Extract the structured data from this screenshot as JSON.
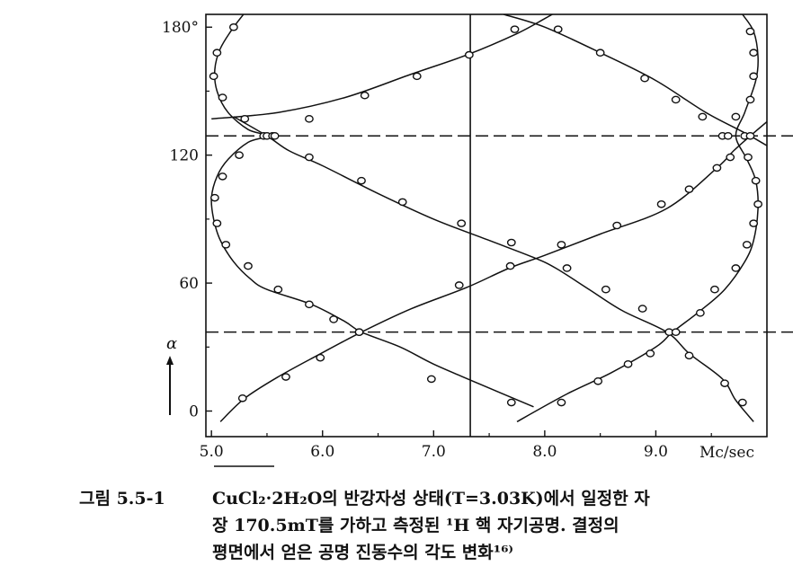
{
  "chart_data": {
    "type": "scatter",
    "title": "",
    "xlabel": "Mc/sec",
    "ylabel": "α",
    "xlim": [
      4.95,
      10.0
    ],
    "ylim": [
      -12,
      186
    ],
    "x_ticks": [
      "5.0",
      "6.0",
      "7.0",
      "8.0",
      "9.0"
    ],
    "x_tick_values": [
      5.0,
      6.0,
      7.0,
      8.0,
      9.0
    ],
    "y_ticks": [
      "0",
      "60",
      "120",
      "180°"
    ],
    "y_tick_values": [
      0,
      60,
      120,
      180
    ],
    "grid": false,
    "reference_lines": {
      "vertical_x": 7.33,
      "horizontal_dashed_y": [
        129,
        37
      ]
    },
    "series": [
      {
        "curve": [
          [
            5.35,
            190
          ],
          [
            5.2,
            180
          ],
          [
            5.08,
            170
          ],
          [
            5.03,
            160
          ],
          [
            5.05,
            150
          ],
          [
            5.15,
            140
          ],
          [
            5.33,
            132
          ],
          [
            5.5,
            129
          ],
          [
            5.33,
            126
          ],
          [
            5.15,
            118
          ],
          [
            5.05,
            110
          ],
          [
            5.0,
            100
          ],
          [
            5.02,
            90
          ],
          [
            5.08,
            80
          ],
          [
            5.2,
            70
          ],
          [
            5.35,
            62
          ],
          [
            5.5,
            57
          ],
          [
            5.9,
            50
          ],
          [
            6.2,
            42
          ],
          [
            6.35,
            37
          ],
          [
            6.7,
            30
          ],
          [
            7.0,
            22
          ],
          [
            7.4,
            13
          ],
          [
            7.9,
            2
          ]
        ],
        "points": [
          [
            5.2,
            180
          ],
          [
            5.05,
            168
          ],
          [
            5.02,
            157
          ],
          [
            5.1,
            147
          ],
          [
            5.3,
            137
          ],
          [
            5.47,
            129
          ],
          [
            5.5,
            129
          ],
          [
            5.55,
            129
          ],
          [
            5.25,
            120
          ],
          [
            5.1,
            110
          ],
          [
            5.03,
            100
          ],
          [
            5.05,
            88
          ],
          [
            5.13,
            78
          ],
          [
            5.33,
            68
          ],
          [
            5.6,
            57
          ],
          [
            5.88,
            50
          ],
          [
            6.1,
            43
          ],
          [
            6.33,
            37
          ],
          [
            6.98,
            15
          ],
          [
            7.7,
            4
          ]
        ]
      },
      {
        "curve": [
          [
            5.08,
            -5
          ],
          [
            5.3,
            6
          ],
          [
            5.6,
            16
          ],
          [
            5.95,
            26
          ],
          [
            6.35,
            37
          ],
          [
            6.8,
            48
          ],
          [
            7.3,
            58
          ],
          [
            7.68,
            67
          ],
          [
            8.0,
            73
          ],
          [
            8.5,
            83
          ],
          [
            9.1,
            95
          ],
          [
            9.55,
            114
          ],
          [
            9.7,
            122
          ],
          [
            9.85,
            129
          ],
          [
            10.1,
            140
          ]
        ],
        "points": [
          [
            5.28,
            6
          ],
          [
            5.67,
            16
          ],
          [
            5.98,
            25
          ],
          [
            6.33,
            37
          ],
          [
            7.23,
            59
          ],
          [
            7.69,
            68
          ],
          [
            8.15,
            78
          ],
          [
            8.65,
            87
          ],
          [
            9.05,
            97
          ],
          [
            9.3,
            104
          ],
          [
            9.55,
            114
          ],
          [
            9.67,
            119
          ],
          [
            9.8,
            129
          ],
          [
            9.85,
            129
          ]
        ]
      },
      {
        "curve": [
          [
            9.88,
            -5
          ],
          [
            9.72,
            5
          ],
          [
            9.6,
            15
          ],
          [
            9.3,
            27
          ],
          [
            9.1,
            37
          ],
          [
            8.7,
            47
          ],
          [
            8.4,
            57
          ],
          [
            8.1,
            67
          ],
          [
            7.9,
            72
          ],
          [
            7.5,
            80
          ],
          [
            7.0,
            90
          ],
          [
            6.5,
            102
          ],
          [
            6.0,
            115
          ],
          [
            5.7,
            122
          ],
          [
            5.5,
            129
          ],
          [
            5.2,
            138
          ]
        ],
        "points": [
          [
            9.78,
            4
          ],
          [
            9.62,
            13
          ],
          [
            9.3,
            26
          ],
          [
            9.12,
            37
          ],
          [
            8.88,
            48
          ],
          [
            8.55,
            57
          ],
          [
            8.2,
            67
          ],
          [
            7.7,
            79
          ],
          [
            7.25,
            88
          ],
          [
            6.72,
            98
          ],
          [
            6.35,
            108
          ],
          [
            5.88,
            119
          ],
          [
            5.57,
            129
          ]
        ]
      },
      {
        "curve": [
          [
            5.0,
            137
          ],
          [
            5.6,
            140
          ],
          [
            6.2,
            147
          ],
          [
            6.8,
            158
          ],
          [
            7.3,
            167
          ],
          [
            7.75,
            177
          ],
          [
            8.0,
            184
          ],
          [
            8.2,
            190
          ]
        ],
        "points": [
          [
            5.88,
            137
          ],
          [
            6.38,
            148
          ],
          [
            6.85,
            157
          ],
          [
            7.32,
            167
          ],
          [
            7.73,
            179
          ]
        ]
      },
      {
        "curve": [
          [
            7.63,
            186
          ],
          [
            8.0,
            180
          ],
          [
            8.5,
            168
          ],
          [
            9.0,
            155
          ],
          [
            9.45,
            140
          ],
          [
            9.85,
            129
          ],
          [
            10.3,
            115
          ]
        ],
        "points": [
          [
            8.12,
            179
          ],
          [
            8.5,
            168
          ],
          [
            8.9,
            156
          ],
          [
            9.18,
            146
          ],
          [
            9.42,
            138
          ],
          [
            9.6,
            129
          ],
          [
            9.65,
            129
          ]
        ]
      },
      {
        "curve": [
          [
            9.78,
            186
          ],
          [
            9.88,
            178
          ],
          [
            9.92,
            166
          ],
          [
            9.9,
            155
          ],
          [
            9.8,
            140
          ],
          [
            9.72,
            129
          ],
          [
            9.82,
            118
          ],
          [
            9.9,
            108
          ],
          [
            9.92,
            95
          ],
          [
            9.88,
            80
          ],
          [
            9.8,
            70
          ],
          [
            9.62,
            57
          ],
          [
            9.4,
            47
          ],
          [
            9.15,
            37
          ],
          [
            9.0,
            30
          ],
          [
            8.6,
            18
          ],
          [
            8.2,
            8
          ],
          [
            7.75,
            -5
          ]
        ],
        "points": [
          [
            9.85,
            178
          ],
          [
            9.88,
            168
          ],
          [
            9.88,
            157
          ],
          [
            9.85,
            146
          ],
          [
            9.72,
            138
          ],
          [
            9.83,
            119
          ],
          [
            9.9,
            108
          ],
          [
            9.92,
            97
          ],
          [
            9.88,
            88
          ],
          [
            9.82,
            78
          ],
          [
            9.72,
            67
          ],
          [
            9.53,
            57
          ],
          [
            9.4,
            46
          ],
          [
            9.18,
            37
          ],
          [
            8.95,
            27
          ],
          [
            8.75,
            22
          ],
          [
            8.48,
            14
          ],
          [
            8.15,
            4
          ]
        ]
      }
    ]
  },
  "caption": {
    "number": "그림 5.5-1",
    "line1": "CuCl₂·2H₂O의 반강자성 상태(T=3.03K)에서 일정한 자",
    "line2": "장 170.5mT를 가하고 측정된 ¹H 핵 자기공명. 결정의",
    "line3": "평면에서 얻은 공명 진동수의 각도 변화¹⁶⁾"
  }
}
